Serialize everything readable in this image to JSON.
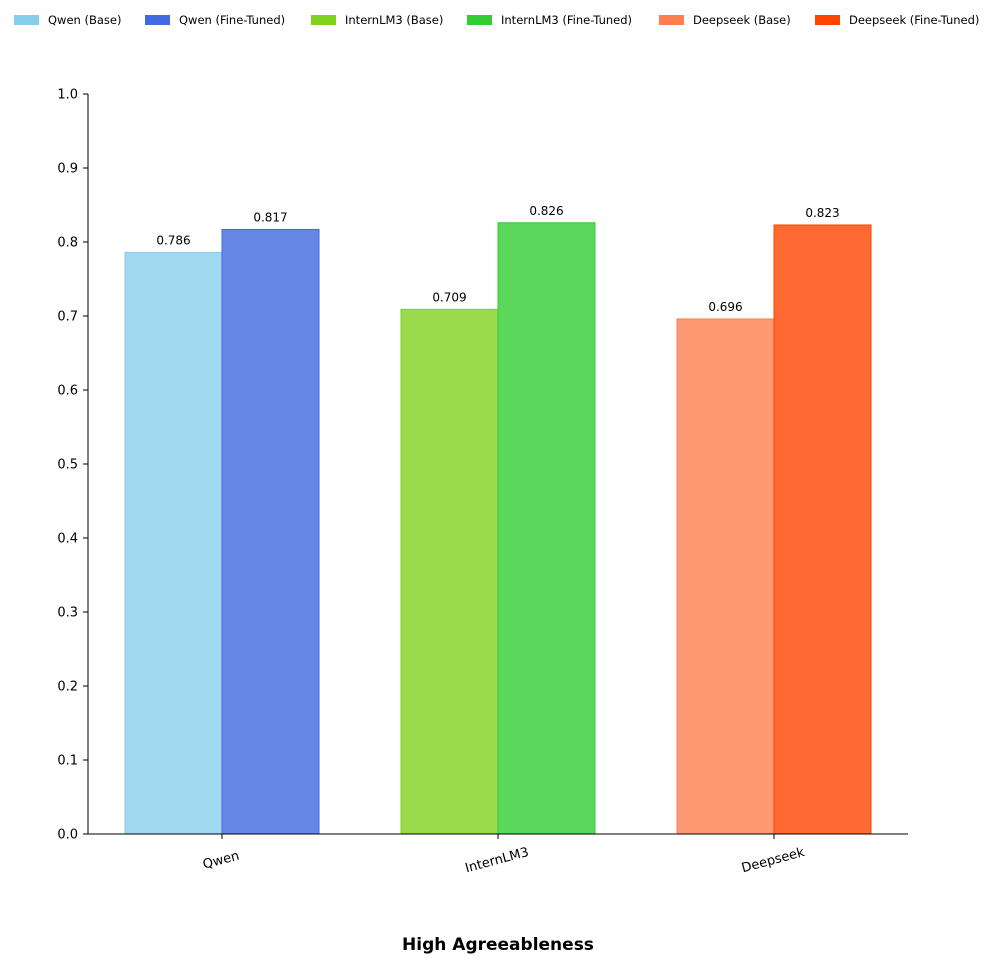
{
  "chart_data": {
    "type": "bar",
    "title": "High Agreeableness",
    "xlabel": "",
    "ylabel": "",
    "ylim": [
      0,
      1.0
    ],
    "yticks": [
      "0.0",
      "0.1",
      "0.2",
      "0.3",
      "0.4",
      "0.5",
      "0.6",
      "0.7",
      "0.8",
      "0.9",
      "1.0"
    ],
    "grid": false,
    "legend_position": "top",
    "groups": [
      {
        "category": "Qwen",
        "bars": [
          {
            "name": "Qwen (Base)",
            "value": 0.786,
            "label": "0.786",
            "color": "#87CEEB"
          },
          {
            "name": "Qwen (Fine-Tuned)",
            "value": 0.817,
            "label": "0.817",
            "color": "#4169E1"
          }
        ]
      },
      {
        "category": "InternLM3",
        "bars": [
          {
            "name": "InternLM3 (Base)",
            "value": 0.709,
            "label": "0.709",
            "color": "#7FD21E"
          },
          {
            "name": "InternLM3 (Fine-Tuned)",
            "value": 0.826,
            "label": "0.826",
            "color": "#32CD32"
          }
        ]
      },
      {
        "category": "Deepseek",
        "bars": [
          {
            "name": "Deepseek (Base)",
            "value": 0.696,
            "label": "0.696",
            "color": "#FF7F50"
          },
          {
            "name": "Deepseek (Fine-Tuned)",
            "value": 0.823,
            "label": "0.823",
            "color": "#FF4500"
          }
        ]
      }
    ],
    "legend": [
      {
        "name": "Qwen (Base)",
        "color": "#87CEEB"
      },
      {
        "name": "Qwen (Fine-Tuned)",
        "color": "#4169E1"
      },
      {
        "name": "InternLM3 (Base)",
        "color": "#7FD21E"
      },
      {
        "name": "InternLM3 (Fine-Tuned)",
        "color": "#32CD32"
      },
      {
        "name": "Deepseek (Base)",
        "color": "#FF7F50"
      },
      {
        "name": "Deepseek (Fine-Tuned)",
        "color": "#FF4500"
      }
    ]
  }
}
